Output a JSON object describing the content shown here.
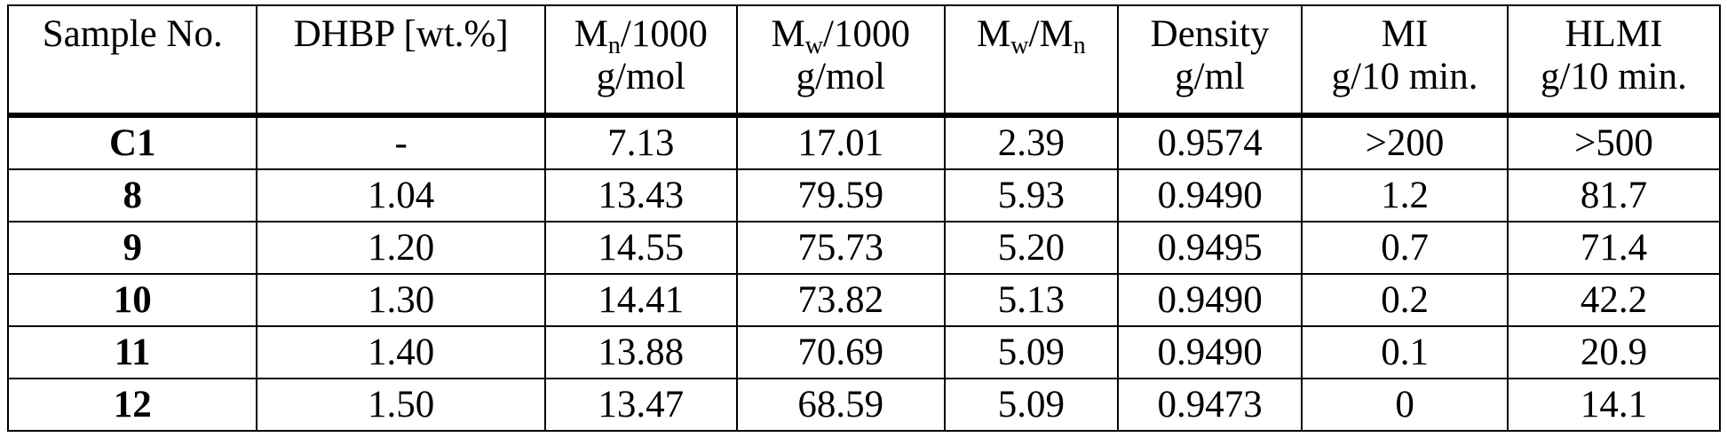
{
  "headers": [
    {
      "line1_main": "Sample No.",
      "line1_sub": "",
      "line1_tail": "",
      "line2": ""
    },
    {
      "line1_main": "DHBP [wt.%]",
      "line1_sub": "",
      "line1_tail": "",
      "line2": ""
    },
    {
      "line1_main": "M",
      "line1_sub": "n",
      "line1_tail": "/1000",
      "line2": "g/mol"
    },
    {
      "line1_main": "M",
      "line1_sub": "w",
      "line1_tail": "/1000",
      "line2": "g/mol"
    },
    {
      "line1_main": "M",
      "line1_sub": "w",
      "line1_tail": "/M",
      "line1_sub2": "n",
      "line2": ""
    },
    {
      "line1_main": "Density",
      "line1_sub": "",
      "line1_tail": "",
      "line2": "g/ml"
    },
    {
      "line1_main": "MI",
      "line1_sub": "",
      "line1_tail": "",
      "line2": "g/10 min."
    },
    {
      "line1_main": "HLMI",
      "line1_sub": "",
      "line1_tail": "",
      "line2": "g/10 min."
    }
  ],
  "rows": [
    [
      "C1",
      "-",
      "7.13",
      "17.01",
      "2.39",
      "0.9574",
      ">200",
      ">500"
    ],
    [
      "8",
      "1.04",
      "13.43",
      "79.59",
      "5.93",
      "0.9490",
      "1.2",
      "81.7"
    ],
    [
      "9",
      "1.20",
      "14.55",
      "75.73",
      "5.20",
      "0.9495",
      "0.7",
      "71.4"
    ],
    [
      "10",
      "1.30",
      "14.41",
      "73.82",
      "5.13",
      "0.9490",
      "0.2",
      "42.2"
    ],
    [
      "11",
      "1.40",
      "13.88",
      "70.69",
      "5.09",
      "0.9490",
      "0.1",
      "20.9"
    ],
    [
      "12",
      "1.50",
      "13.47",
      "68.59",
      "5.09",
      "0.9473",
      "0",
      "14.1"
    ]
  ]
}
